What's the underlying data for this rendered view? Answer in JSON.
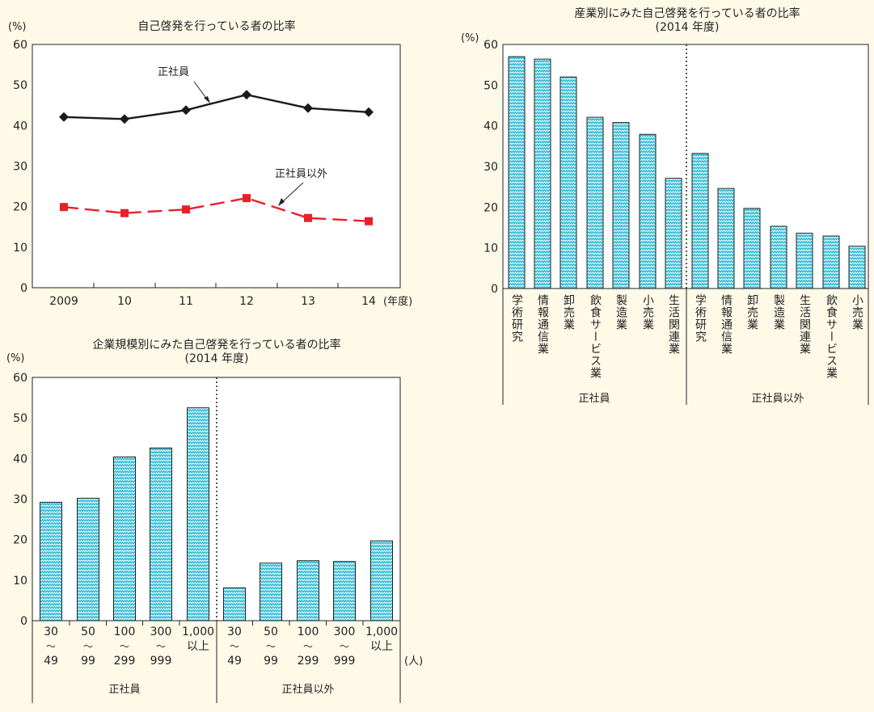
{
  "chart_data": [
    {
      "type": "line",
      "title": "自己啓発を行っている者の比率",
      "ylabel": "(%)",
      "ylim": [
        0,
        60
      ],
      "yticks": [
        0,
        10,
        20,
        30,
        40,
        50,
        60
      ],
      "categories": [
        "2009",
        "10",
        "11",
        "12",
        "13",
        "14"
      ],
      "xunit": "(年度)",
      "series": [
        {
          "name": "正社員",
          "values": [
            42.1,
            41.6,
            43.8,
            47.6,
            44.3,
            43.3
          ],
          "color": "#1a1a1a",
          "marker": "diamond",
          "dash": "solid"
        },
        {
          "name": "正社員以外",
          "values": [
            19.9,
            18.4,
            19.3,
            22.1,
            17.2,
            16.4
          ],
          "color": "#e8202a",
          "marker": "square",
          "dash": "dashed"
        }
      ]
    },
    {
      "type": "bar",
      "title": "産業別にみた自己啓発を行っている者の比率",
      "subtitle": "(2014 年度)",
      "ylabel": "(%)",
      "ylim": [
        0,
        60
      ],
      "yticks": [
        0,
        10,
        20,
        30,
        40,
        50,
        60
      ],
      "groups": [
        {
          "name": "正社員",
          "categories": [
            "学術研究",
            "情報通信業",
            "卸売業",
            "飲食サービス業",
            "製造業",
            "小売業",
            "生活関連業"
          ],
          "values": [
            57.0,
            56.4,
            52.0,
            42.1,
            40.8,
            37.9,
            27.1
          ]
        },
        {
          "name": "正社員以外",
          "categories": [
            "学術研究",
            "情報通信業",
            "卸売業",
            "製造業",
            "生活関連業",
            "飲食サービス業",
            "小売業"
          ],
          "values": [
            33.2,
            24.6,
            19.7,
            15.3,
            13.6,
            12.9,
            10.4
          ]
        }
      ],
      "bar_color": "#40c0d8"
    },
    {
      "type": "bar",
      "title": "企業規模別にみた自己啓発を行っている者の比率",
      "subtitle": "(2014 年度)",
      "ylabel": "(%)",
      "ylim": [
        0,
        60
      ],
      "yticks": [
        0,
        10,
        20,
        30,
        40,
        50,
        60
      ],
      "xunit": "(人)",
      "groups": [
        {
          "name": "正社員",
          "categories": [
            [
              "30",
              "〜",
              "49"
            ],
            [
              "50",
              "〜",
              "99"
            ],
            [
              "100",
              "〜",
              "299"
            ],
            [
              "300",
              "〜",
              "999"
            ],
            [
              "1,000",
              "以上"
            ]
          ],
          "values": [
            29.2,
            30.2,
            40.4,
            42.6,
            52.5
          ]
        },
        {
          "name": "正社員以外",
          "categories": [
            [
              "30",
              "〜",
              "49"
            ],
            [
              "50",
              "〜",
              "99"
            ],
            [
              "100",
              "〜",
              "299"
            ],
            [
              "300",
              "〜",
              "999"
            ],
            [
              "1,000",
              "以上"
            ]
          ],
          "values": [
            8.1,
            14.2,
            14.8,
            14.6,
            19.7
          ]
        }
      ],
      "bar_color": "#40c0d8"
    }
  ]
}
